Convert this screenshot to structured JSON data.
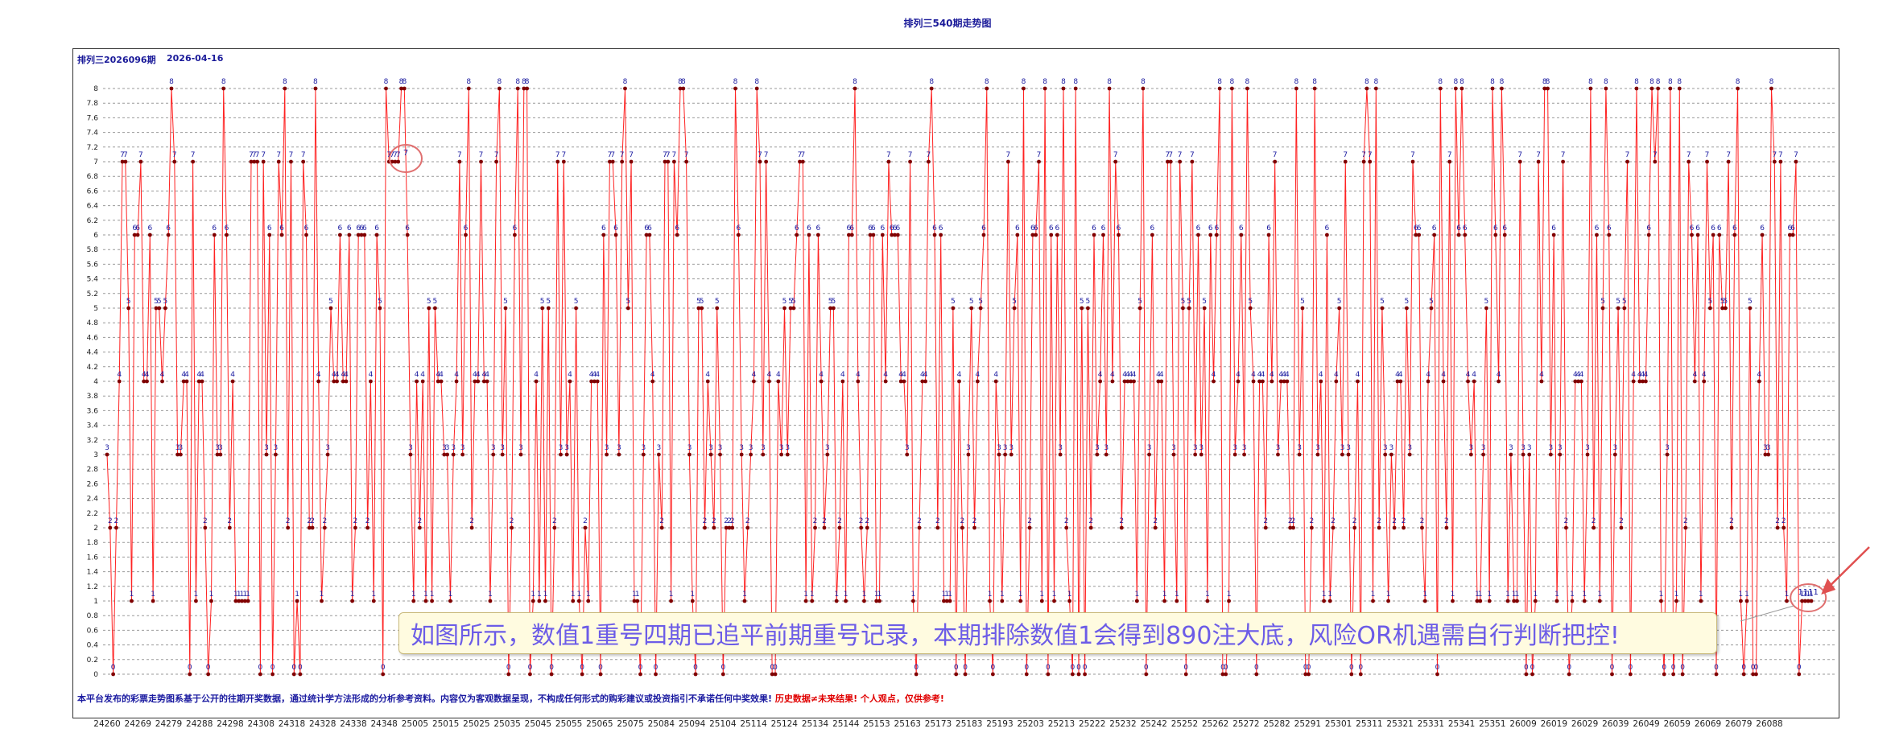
{
  "title": "排列三540期走势图",
  "issue_label": "排列三2026096期",
  "issue_date": "2026-04-16",
  "footer": {
    "part1": "本平台发布的彩票走势图系基于公开的往期开奖数据，通过统计学方法形成的分析参考资料。内容仅为客观数据呈现，不构成任何形式的购彩建议或投资指引不承诺任何中奖效果!",
    "part2": "历史数据≠未来结果! 个人观点，仅供参考!"
  },
  "annotation": "如图所示，数值1重号四期已追平前期重号记录，本期排除数值1会得到890注大底，风险OR机遇需自行判断把控!",
  "colors": {
    "line": "#ff2222",
    "point": "#800000",
    "label": "#1a1aa0",
    "circle": "#e07070"
  },
  "chart_data": {
    "type": "line",
    "ylim": [
      0,
      8
    ],
    "yticks": [
      "0",
      "0.2",
      "0.4",
      "0.6",
      "0.8",
      "1",
      "1.2",
      "1.4",
      "1.6",
      "1.8",
      "2",
      "2.2",
      "2.4",
      "2.6",
      "2.8",
      "3",
      "3.2",
      "3.4",
      "3.6",
      "3.8",
      "4",
      "4.2",
      "4.4",
      "4.6",
      "4.8",
      "5",
      "5.2",
      "5.4",
      "5.6",
      "5.8",
      "6",
      "6.2",
      "6.4",
      "6.6",
      "6.8",
      "7",
      "7.2",
      "7.4",
      "7.6",
      "7.8",
      "8"
    ],
    "xticks": [
      "24260",
      "24269",
      "24279",
      "24288",
      "24298",
      "24308",
      "24318",
      "24328",
      "24338",
      "24348",
      "25005",
      "25015",
      "25025",
      "25035",
      "25045",
      "25055",
      "25065",
      "25075",
      "25084",
      "25094",
      "25104",
      "25114",
      "25124",
      "25134",
      "25144",
      "25153",
      "25163",
      "25173",
      "25183",
      "25193",
      "25203",
      "25213",
      "25222",
      "25232",
      "25242",
      "25252",
      "25262",
      "25272",
      "25282",
      "25291",
      "25301",
      "25311",
      "25321",
      "25331",
      "25341",
      "25351",
      "26009",
      "26019",
      "26029",
      "26039",
      "26049",
      "26059",
      "26069",
      "26079",
      "26088"
    ],
    "grid": true,
    "highlight_labels": [
      "7",
      "1111"
    ],
    "series": [
      {
        "values": [
          3,
          2,
          0,
          2,
          4,
          7,
          7,
          5,
          1,
          6,
          6,
          7,
          4,
          4,
          6,
          1,
          5,
          5,
          4,
          5,
          6,
          8,
          7,
          3,
          3,
          4,
          4,
          0,
          7,
          1,
          4,
          4,
          2,
          0,
          1,
          6,
          3,
          3,
          8,
          6,
          2,
          4,
          1,
          1,
          1,
          1,
          1,
          7,
          7,
          7,
          0,
          7,
          3,
          6,
          0,
          3,
          7,
          6,
          8,
          2,
          7,
          0,
          1,
          0,
          7,
          6,
          2,
          2,
          8,
          4,
          1,
          2,
          3,
          5,
          4,
          4,
          6,
          4,
          4,
          6,
          1,
          2,
          6,
          6,
          6,
          2,
          4,
          1,
          6,
          5,
          0,
          8,
          7,
          7,
          7,
          7,
          8,
          8,
          6,
          3,
          1,
          4,
          2,
          4,
          1,
          5,
          1,
          5,
          4,
          4,
          3,
          3,
          1,
          3,
          4,
          7,
          3,
          6,
          8,
          2,
          4,
          4,
          7,
          4,
          4,
          1,
          3,
          7,
          8,
          3,
          5,
          0,
          2,
          6,
          8,
          3,
          8,
          8,
          0,
          1,
          4,
          1,
          5,
          1,
          5,
          0,
          2,
          7,
          3,
          7,
          3,
          4,
          1,
          5,
          1,
          0,
          2,
          1,
          4,
          4,
          4,
          0,
          6,
          3,
          7,
          7,
          6,
          3,
          7,
          8,
          5,
          7,
          1,
          1,
          0,
          3,
          6,
          6,
          4,
          0,
          3,
          2,
          7,
          7,
          1,
          7,
          6,
          8,
          8,
          7,
          3,
          1,
          0,
          5,
          5,
          2,
          4,
          3,
          2,
          5,
          3,
          0,
          2,
          2,
          2,
          8,
          6,
          3,
          1,
          2,
          3,
          4,
          8,
          7,
          3,
          7,
          4,
          0,
          0,
          4,
          3,
          5,
          3,
          5,
          5,
          6,
          7,
          7,
          1,
          6,
          1,
          2,
          6,
          4,
          2,
          3,
          5,
          5,
          1,
          2,
          4,
          1,
          6,
          6,
          8,
          4,
          2,
          1,
          2,
          6,
          6,
          1,
          1,
          6,
          4,
          7,
          6,
          6,
          6,
          4,
          4,
          3,
          7,
          1,
          0,
          2,
          4,
          4,
          7,
          8,
          6,
          2,
          6,
          1,
          1,
          1,
          5,
          0,
          4,
          2,
          0,
          3,
          5,
          2,
          4,
          5,
          6,
          8,
          1,
          0,
          4,
          3,
          1,
          3,
          7,
          3,
          5,
          6,
          1,
          8,
          0,
          2,
          6,
          6,
          7,
          1,
          8,
          0,
          6,
          1,
          6,
          3,
          8,
          2,
          1,
          0,
          8,
          0,
          5,
          0,
          5,
          2,
          6,
          3,
          4,
          6,
          3,
          8,
          4,
          7,
          6,
          2,
          4,
          4,
          4,
          4,
          1,
          5,
          8,
          0,
          3,
          6,
          2,
          4,
          4,
          1,
          7,
          7,
          3,
          1,
          7,
          5,
          0,
          5,
          7,
          3,
          6,
          3,
          5,
          1,
          6,
          4,
          6,
          8,
          0,
          0,
          1,
          8,
          3,
          4,
          6,
          3,
          8,
          5,
          4,
          0,
          4,
          4,
          2,
          6,
          4,
          7,
          3,
          4,
          4,
          4,
          2,
          2,
          8,
          3,
          5,
          0,
          0,
          2,
          8,
          3,
          4,
          1,
          6,
          1,
          2,
          4,
          5,
          3,
          7,
          3,
          0,
          2,
          4,
          0,
          7,
          8,
          7,
          1,
          8,
          2,
          5,
          3,
          1,
          3,
          2,
          4,
          4,
          2,
          5,
          3,
          7,
          6,
          6,
          2,
          1,
          4,
          5,
          6,
          0,
          8,
          4,
          2,
          7,
          1,
          8,
          6,
          8,
          6,
          4,
          3,
          4,
          1,
          1,
          3,
          5,
          1,
          8,
          6,
          4,
          8,
          6,
          1,
          3,
          1,
          1,
          7,
          3,
          0,
          3,
          0,
          1,
          7,
          4,
          8,
          8,
          3,
          6,
          1,
          3,
          7,
          2,
          0,
          1,
          4,
          4,
          4,
          1,
          3,
          8,
          2,
          6,
          1,
          5,
          8,
          6,
          0,
          3,
          5,
          2,
          5,
          7,
          0,
          4,
          8,
          4,
          4,
          4,
          6,
          8,
          7,
          8,
          1,
          0,
          3,
          8,
          0,
          1,
          8,
          0,
          2,
          7,
          6,
          4,
          6,
          1,
          4,
          7,
          5,
          6,
          0,
          6,
          5,
          5,
          7,
          2,
          6,
          8,
          1,
          0,
          1,
          5,
          0,
          0,
          4,
          6,
          3,
          3,
          8,
          7,
          2,
          7,
          2,
          1,
          6,
          6,
          7,
          0,
          1,
          1,
          1,
          1
        ]
      }
    ]
  }
}
